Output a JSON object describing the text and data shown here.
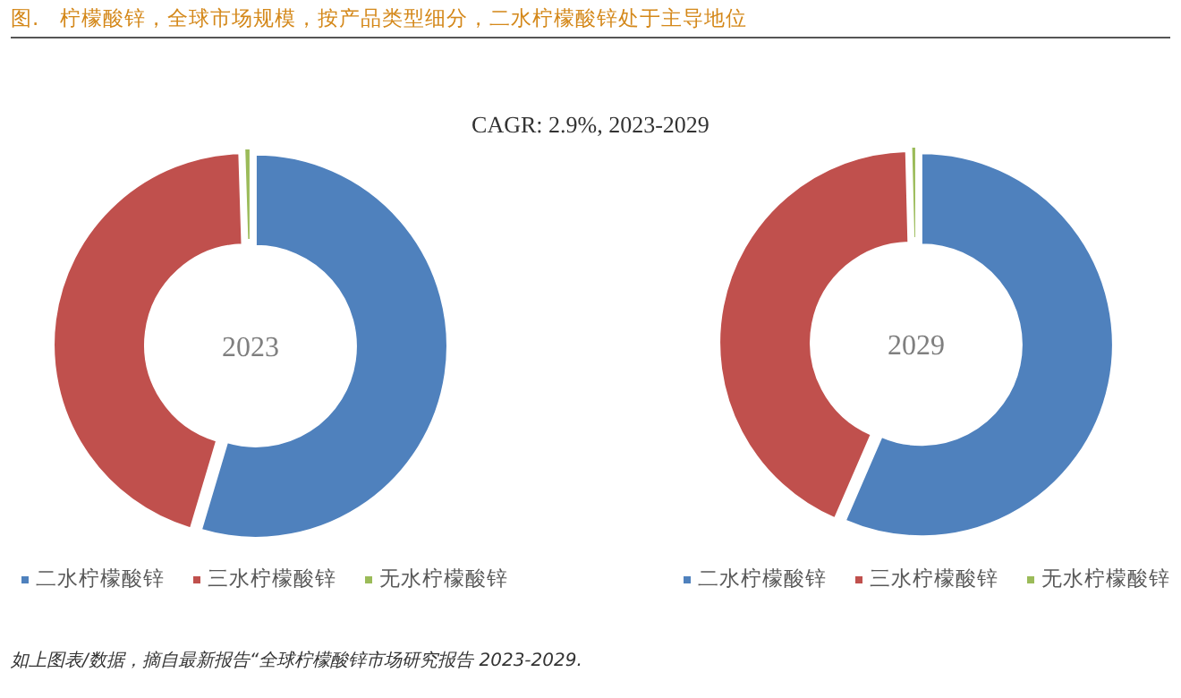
{
  "chart_data": [
    {
      "type": "donut",
      "title": "图.　柠檬酸锌，全球市场规模，按产品类型细分，二水柠檬酸锌处于主导地位",
      "subtitle": "2023",
      "categories": [
        "二水柠檬酸锌",
        "三水柠檬酸锌",
        "无水柠檬酸锌"
      ],
      "values": [
        54.6,
        44.9,
        0.5
      ],
      "colors": [
        "#4f81bd",
        "#c0504d",
        "#9bbb59"
      ],
      "legend": "bottom",
      "annotations": [
        "CAGR:  2.9%, 2023-2029",
        "如上图表/数据，摘自最新报告“全球柠檬酸锌市场研究报告 2023-2029."
      ]
    },
    {
      "type": "donut",
      "subtitle": "2029",
      "categories": [
        "二水柠檬酸锌",
        "三水柠檬酸锌",
        "无水柠檬酸锌"
      ],
      "values": [
        56.5,
        43.1,
        0.4
      ],
      "colors": [
        "#4f81bd",
        "#c0504d",
        "#9bbb59"
      ],
      "legend": "bottom"
    }
  ]
}
